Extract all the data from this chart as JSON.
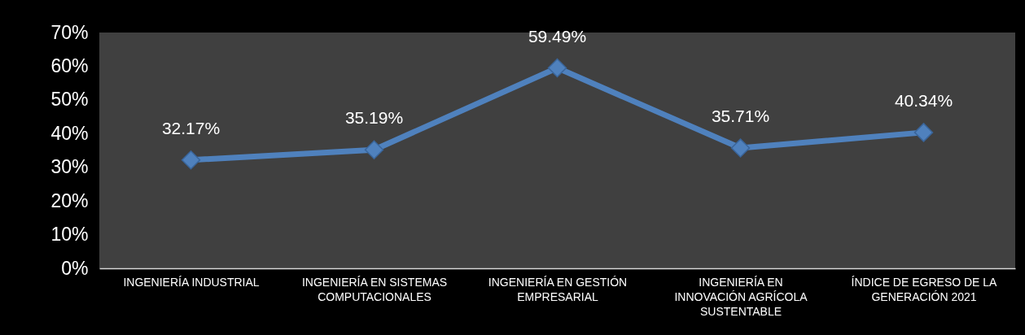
{
  "chart_data": {
    "type": "line",
    "categories": [
      "INGENIERÍA INDUSTRIAL",
      "INGENIERÍA EN SISTEMAS COMPUTACIONALES",
      "INGENIERÍA EN GESTIÓN EMPRESARIAL",
      "INGENIERÍA EN INNOVACIÓN AGRÍCOLA SUSTENTABLE",
      "ÍNDICE DE EGRESO DE LA GENERACIÓN 2021"
    ],
    "series": [
      {
        "color": "#4f81bd",
        "values": [
          32.17,
          35.19,
          59.49,
          35.71,
          40.34
        ],
        "value_labels": [
          "32.17%",
          "35.19%",
          "59.49%",
          "35.71%",
          "40.34%"
        ]
      }
    ],
    "ylim": [
      0,
      70
    ],
    "yticks": [
      {
        "value": 0,
        "label": "0%"
      },
      {
        "value": 10,
        "label": "10%"
      },
      {
        "value": 20,
        "label": "20%"
      },
      {
        "value": 30,
        "label": "30%"
      },
      {
        "value": 40,
        "label": "40%"
      },
      {
        "value": 50,
        "label": "50%"
      },
      {
        "value": 60,
        "label": "60%"
      },
      {
        "value": 70,
        "label": "70%"
      }
    ],
    "marker": "diamond",
    "line_style": "solid"
  }
}
